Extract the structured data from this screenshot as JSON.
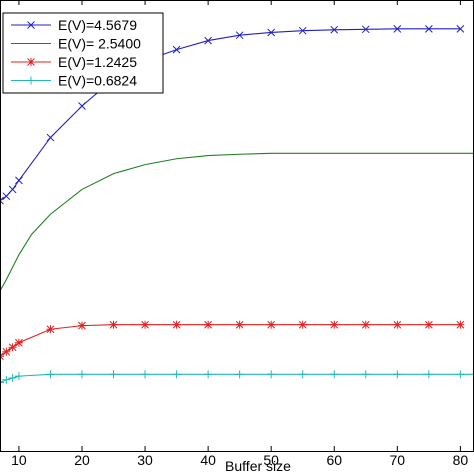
{
  "chart_data": {
    "type": "line",
    "xlabel": "Buffer size",
    "ylabel": "",
    "title": "",
    "xlim": [
      7,
      82
    ],
    "ylim": [
      0,
      100
    ],
    "x_ticks": [
      10,
      20,
      30,
      40,
      50,
      60,
      70,
      80
    ],
    "x_tick_labels": [
      "10",
      "20",
      "30",
      "40",
      "50",
      "60",
      "70",
      "80"
    ],
    "grid": false,
    "legend_position": "top-left",
    "series": [
      {
        "name": "E(V)=4.5679",
        "color": "#2020c0",
        "marker": "x",
        "x": [
          7,
          8,
          9,
          10,
          15,
          20,
          25,
          30,
          35,
          40,
          45,
          50,
          55,
          60,
          65,
          70,
          75,
          80
        ],
        "y": [
          55.5,
          56.5,
          58.0,
          60.0,
          69.5,
          76.5,
          82.5,
          86.5,
          89.0,
          91.0,
          92.2,
          92.8,
          93.2,
          93.4,
          93.5,
          93.6,
          93.6,
          93.6
        ],
        "marker_x": [
          7,
          8,
          9,
          10,
          15,
          20,
          25,
          30,
          35,
          40,
          45,
          50,
          55,
          60,
          65,
          70,
          75,
          80
        ]
      },
      {
        "name": "E(V)= 2.5400",
        "color": "#208020",
        "marker": "none",
        "x": [
          7,
          8,
          10,
          12,
          15,
          20,
          25,
          30,
          35,
          40,
          45,
          50,
          55,
          60,
          65,
          70,
          75,
          80,
          82
        ],
        "y": [
          35.5,
          38.0,
          43.5,
          48.0,
          52.5,
          58.0,
          61.5,
          63.5,
          64.8,
          65.5,
          65.8,
          66.0,
          66.0,
          66.0,
          66.0,
          66.0,
          66.0,
          66.0,
          66.0
        ],
        "marker_x": []
      },
      {
        "name": "E(V)=1.2425",
        "color": "#e02020",
        "marker": "*",
        "x": [
          7,
          8,
          9,
          10,
          15,
          20,
          25,
          30,
          35,
          40,
          45,
          50,
          55,
          60,
          65,
          70,
          75,
          80
        ],
        "y": [
          21.0,
          22.0,
          23.0,
          24.0,
          27.0,
          27.8,
          28.0,
          28.0,
          28.0,
          28.0,
          28.0,
          28.0,
          28.0,
          28.0,
          28.0,
          28.0,
          28.0,
          28.0
        ],
        "marker_x": [
          7,
          8,
          9,
          10,
          15,
          20,
          25,
          30,
          35,
          40,
          45,
          50,
          55,
          60,
          65,
          70,
          75,
          80
        ]
      },
      {
        "name": "E(V)=0.6824",
        "color": "#20b8b8",
        "marker": "+",
        "x": [
          7,
          8,
          9,
          10,
          15,
          20,
          25,
          30,
          35,
          40,
          45,
          50,
          55,
          60,
          65,
          70,
          75,
          80,
          82
        ],
        "y": [
          15.2,
          15.8,
          16.2,
          16.6,
          17.0,
          17.0,
          17.0,
          17.0,
          17.0,
          17.0,
          17.0,
          17.0,
          17.0,
          17.0,
          17.0,
          17.0,
          17.0,
          17.0,
          17.0
        ],
        "marker_x": [
          7,
          8,
          9,
          10,
          15,
          20,
          25,
          30,
          35,
          40,
          45,
          50,
          55,
          60,
          65,
          70,
          75,
          80
        ]
      }
    ]
  }
}
